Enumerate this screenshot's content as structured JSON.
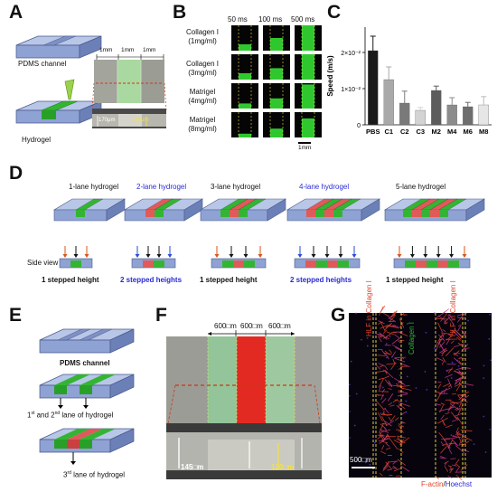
{
  "panels": {
    "A": {
      "letter": "A",
      "pdms_label": "PDMS channel",
      "hydrogel_label": "Hydrogel",
      "scale_1": "1mm",
      "scale_2": "1mm",
      "scale_3": "1mm",
      "height_1": "170μm",
      "height_2": "140μm"
    },
    "B": {
      "letter": "B",
      "columns": [
        "50 ms",
        "100 ms",
        "500 ms"
      ],
      "rows": [
        {
          "name": "Collagen I",
          "conc": "(1mg/ml)"
        },
        {
          "name": "Collagen I",
          "conc": "(3mg/ml)"
        },
        {
          "name": "Matrigel",
          "conc": "(4mg/ml)"
        },
        {
          "name": "Matrigel",
          "conc": "(8mg/ml)"
        }
      ],
      "scale": "1mm"
    },
    "C": {
      "letter": "C",
      "ylabel": "Speed (m/s)",
      "yticks": [
        "0",
        "1×10⁻²",
        "2×10⁻²"
      ]
    },
    "D": {
      "letter": "D",
      "titles": [
        "1-lane hydrogel",
        "2-lane hydrogel",
        "3-lane hydrogel",
        "4-lane hydrogel",
        "5-lane hydrogel"
      ],
      "side_view": "Side view",
      "heights": [
        "1 stepped height",
        "2 stepped heights",
        "1 stepped height",
        "2 stepped heights",
        "1 stepped height"
      ]
    },
    "E": {
      "letter": "E",
      "pdms_label": "PDMS channel",
      "lane12_pre": "1",
      "lane12_sup1": "st",
      "lane12_mid": " and 2",
      "lane12_sup2": "nd",
      "lane12_post": " lane of hydrogel",
      "lane3_pre": "3",
      "lane3_sup": "rd",
      "lane3_post": " lane of hydrogel"
    },
    "F": {
      "letter": "F",
      "widths": [
        "600□m",
        "600□m",
        "600□m"
      ],
      "height_1": "145□m",
      "height_2": "120□m"
    },
    "G": {
      "letter": "G",
      "label_left": "HLF in Collagen I",
      "label_mid": "Collagen I",
      "label_right": "HLF in Collagen I",
      "scale": "500□m",
      "stain_1": "F-actin",
      "stain_sep": "/",
      "stain_2": "Hoechst"
    }
  },
  "chart_data": {
    "type": "bar",
    "categories": [
      "PBS",
      "C1",
      "C2",
      "C3",
      "M2",
      "M4",
      "M6",
      "M8"
    ],
    "values": [
      0.0205,
      0.0125,
      0.006,
      0.004,
      0.0095,
      0.0055,
      0.005,
      0.0055
    ],
    "errors": [
      0.004,
      0.0035,
      0.0033,
      0.0008,
      0.0012,
      0.002,
      0.0012,
      0.0023
    ],
    "colors": [
      "#1a1a1a",
      "#a9a9a9",
      "#7a7a7a",
      "#d3d3d3",
      "#5c5c5c",
      "#8c8c8c",
      "#6e6e6e",
      "#e6e6e6"
    ],
    "ylabel": "Speed (m/s)",
    "ylim": [
      0,
      0.027
    ],
    "yticks": [
      "0",
      "1×10⁻²",
      "2×10⁻²"
    ]
  }
}
